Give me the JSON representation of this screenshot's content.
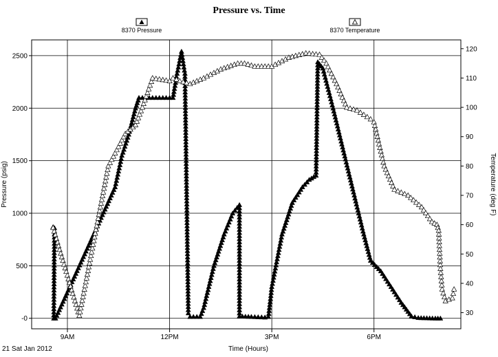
{
  "chart_data": {
    "type": "scatter",
    "title": "Pressure vs. Time",
    "xlabel": "Time (Hours)",
    "ylabel_left": "Pressure (psig)",
    "ylabel_right": "Temperature (deg F)",
    "date_label": "21 Sat Jan 2012",
    "x_unit": "hours",
    "xlim": [
      7.95,
      20.55
    ],
    "ylim_left": [
      -100,
      2650
    ],
    "ylim_right": [
      24.5,
      123
    ],
    "grid": true,
    "legend_placement": "top",
    "x_ticks": [
      {
        "value": 9,
        "label": "9AM"
      },
      {
        "value": 12,
        "label": "12PM"
      },
      {
        "value": 15,
        "label": "3PM"
      },
      {
        "value": 18,
        "label": "6PM"
      }
    ],
    "y_ticks_left": [
      {
        "value": 0,
        "label": "-0"
      },
      {
        "value": 500,
        "label": "500"
      },
      {
        "value": 1000,
        "label": "1000"
      },
      {
        "value": 1500,
        "label": "1500"
      },
      {
        "value": 2000,
        "label": "2000"
      },
      {
        "value": 2500,
        "label": "2500"
      }
    ],
    "y_ticks_right": [
      {
        "value": 30,
        "label": "30"
      },
      {
        "value": 40,
        "label": "40"
      },
      {
        "value": 50,
        "label": "50"
      },
      {
        "value": 60,
        "label": "60"
      },
      {
        "value": 70,
        "label": "70"
      },
      {
        "value": 80,
        "label": "80"
      },
      {
        "value": 90,
        "label": "90"
      },
      {
        "value": 100,
        "label": "100"
      },
      {
        "value": 110,
        "label": "110"
      },
      {
        "value": 120,
        "label": "120"
      }
    ],
    "series": [
      {
        "name": "8370 Pressure",
        "axis": "left",
        "marker": "filled-triangle",
        "color": "#000000",
        "points": [
          [
            8.58,
            870
          ],
          [
            8.62,
            860
          ],
          [
            8.6,
            0
          ],
          [
            8.65,
            0
          ],
          [
            10.4,
            1250
          ],
          [
            10.6,
            1550
          ],
          [
            10.8,
            1750
          ],
          [
            11.0,
            2000
          ],
          [
            11.1,
            2100
          ],
          [
            11.5,
            2100
          ],
          [
            11.8,
            2100
          ],
          [
            12.1,
            2100
          ],
          [
            12.2,
            2300
          ],
          [
            12.35,
            2540
          ],
          [
            12.45,
            2330
          ],
          [
            12.55,
            50
          ],
          [
            12.6,
            15
          ],
          [
            12.9,
            15
          ],
          [
            13.0,
            100
          ],
          [
            13.3,
            500
          ],
          [
            13.6,
            800
          ],
          [
            13.85,
            1000
          ],
          [
            14.05,
            1080
          ],
          [
            14.05,
            20
          ],
          [
            14.4,
            15
          ],
          [
            14.8,
            10
          ],
          [
            14.9,
            15
          ],
          [
            15.0,
            300
          ],
          [
            15.3,
            800
          ],
          [
            15.6,
            1100
          ],
          [
            15.9,
            1250
          ],
          [
            16.1,
            1320
          ],
          [
            16.3,
            1360
          ],
          [
            16.35,
            2440
          ],
          [
            16.5,
            2380
          ],
          [
            16.8,
            2000
          ],
          [
            17.1,
            1600
          ],
          [
            17.4,
            1200
          ],
          [
            17.7,
            800
          ],
          [
            17.9,
            550
          ],
          [
            18.2,
            450
          ],
          [
            18.5,
            300
          ],
          [
            18.8,
            150
          ],
          [
            19.1,
            20
          ],
          [
            19.3,
            5
          ],
          [
            19.8,
            0
          ],
          [
            19.95,
            0
          ]
        ]
      },
      {
        "name": "8370 Temperature",
        "axis": "right",
        "marker": "open-triangle",
        "color": "#000000",
        "points": [
          [
            8.58,
            59
          ],
          [
            9.35,
            29
          ],
          [
            10.2,
            80
          ],
          [
            10.7,
            91
          ],
          [
            11.0,
            94
          ],
          [
            11.2,
            100
          ],
          [
            11.5,
            110
          ],
          [
            12.0,
            109
          ],
          [
            12.1,
            110
          ],
          [
            12.3,
            109
          ],
          [
            12.6,
            108
          ],
          [
            13.0,
            110
          ],
          [
            13.5,
            113
          ],
          [
            14.0,
            115
          ],
          [
            14.2,
            115
          ],
          [
            14.5,
            114
          ],
          [
            15.0,
            114
          ],
          [
            15.5,
            117
          ],
          [
            16.0,
            118.5
          ],
          [
            16.4,
            118
          ],
          [
            16.6,
            115
          ],
          [
            16.9,
            108
          ],
          [
            17.2,
            100
          ],
          [
            17.5,
            99
          ],
          [
            17.9,
            96
          ],
          [
            18.0,
            95
          ],
          [
            18.1,
            90
          ],
          [
            18.3,
            80
          ],
          [
            18.6,
            72
          ],
          [
            19.0,
            70
          ],
          [
            19.4,
            66
          ],
          [
            19.7,
            61
          ],
          [
            19.85,
            60
          ],
          [
            19.9,
            58
          ],
          [
            19.95,
            45
          ],
          [
            20.0,
            38
          ],
          [
            20.1,
            34
          ],
          [
            20.3,
            35
          ],
          [
            20.35,
            38
          ]
        ]
      }
    ]
  }
}
